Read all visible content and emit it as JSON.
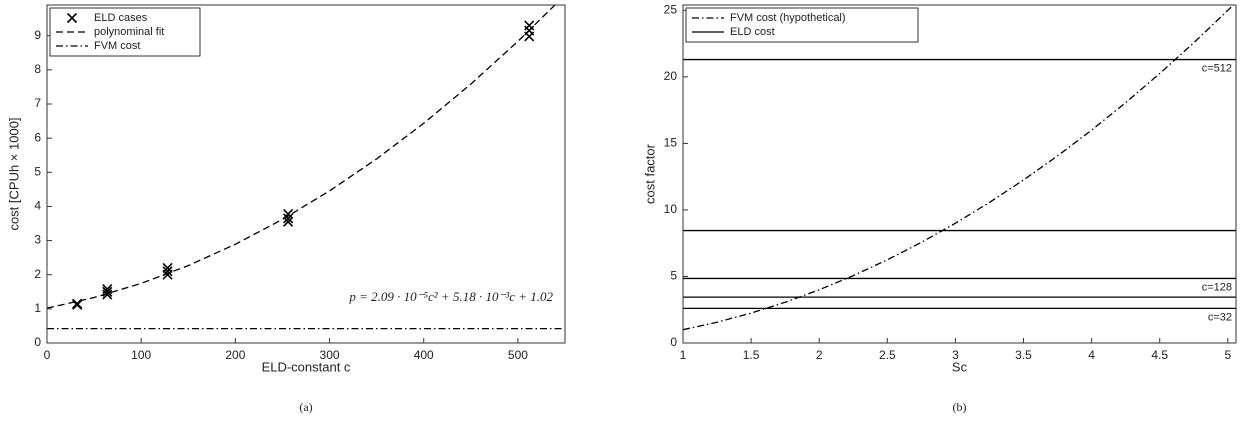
{
  "chart_data": [
    {
      "type": "scatter",
      "caption": "(a)",
      "xlabel": "ELD-constant c",
      "ylabel": "cost [CPUh  × 1000]",
      "xlim": [
        0,
        550
      ],
      "ylim": [
        0,
        9.9
      ],
      "xticks": [
        0,
        100,
        200,
        300,
        400,
        500
      ],
      "yticks": [
        0,
        1,
        2,
        3,
        4,
        5,
        6,
        7,
        8,
        9
      ],
      "annotation": "p = 2.09 · 10⁻⁵c² + 5.18 · 10⁻³c + 1.02",
      "legend": "upper left",
      "series": [
        {
          "name": "ELD cases",
          "style": "marker",
          "color": "#000000",
          "x": [
            32,
            32,
            64,
            64,
            64,
            128,
            128,
            128,
            256,
            256,
            256,
            512,
            512,
            512
          ],
          "values": [
            1.12,
            1.15,
            1.42,
            1.5,
            1.58,
            2.0,
            2.1,
            2.2,
            3.55,
            3.65,
            3.78,
            8.98,
            9.15,
            9.3
          ]
        },
        {
          "name": "polynominal fit",
          "style": "dashed",
          "color": "#000000",
          "x": [
            0,
            50,
            100,
            150,
            200,
            250,
            300,
            350,
            400,
            450,
            500,
            550
          ],
          "values": [
            1.02,
            1.331,
            1.747,
            2.267,
            2.892,
            3.621,
            4.455,
            5.393,
            6.436,
            7.583,
            8.835,
            10.19
          ]
        },
        {
          "name": "FVM cost",
          "style": "dashdot",
          "color": "#000000",
          "x": [
            0,
            550
          ],
          "values": [
            0.42,
            0.42
          ]
        }
      ]
    },
    {
      "type": "line",
      "caption": "(b)",
      "xlabel": "Sc",
      "ylabel": "cost factor",
      "xlim": [
        1,
        5.06
      ],
      "ylim": [
        0,
        25.4
      ],
      "xticks": [
        1,
        1.5,
        2,
        2.5,
        3,
        3.5,
        4,
        4.5,
        5
      ],
      "yticks": [
        0,
        5,
        10,
        15,
        20,
        25
      ],
      "legend": "upper left",
      "series": [
        {
          "name": "FVM cost (hypothetical)",
          "style": "dashdot",
          "color": "#000000",
          "x": [
            1,
            1.25,
            1.5,
            1.75,
            2,
            2.25,
            2.5,
            2.75,
            3,
            3.25,
            3.5,
            3.75,
            4,
            4.25,
            4.5,
            4.75,
            5,
            5.1
          ],
          "values": [
            1,
            1.5625,
            2.25,
            3.0625,
            4,
            5.0625,
            6.25,
            7.5625,
            9,
            10.5625,
            12.25,
            14.0625,
            16,
            18.0625,
            20.25,
            22.5625,
            25,
            26.01
          ]
        },
        {
          "name": "ELD cost",
          "style": "hline",
          "color": "#000000",
          "values": [
            2.6,
            3.45,
            4.85,
            8.45,
            21.3
          ],
          "labels": [
            "c=32",
            null,
            "c=128",
            null,
            "c=512"
          ]
        }
      ]
    }
  ]
}
